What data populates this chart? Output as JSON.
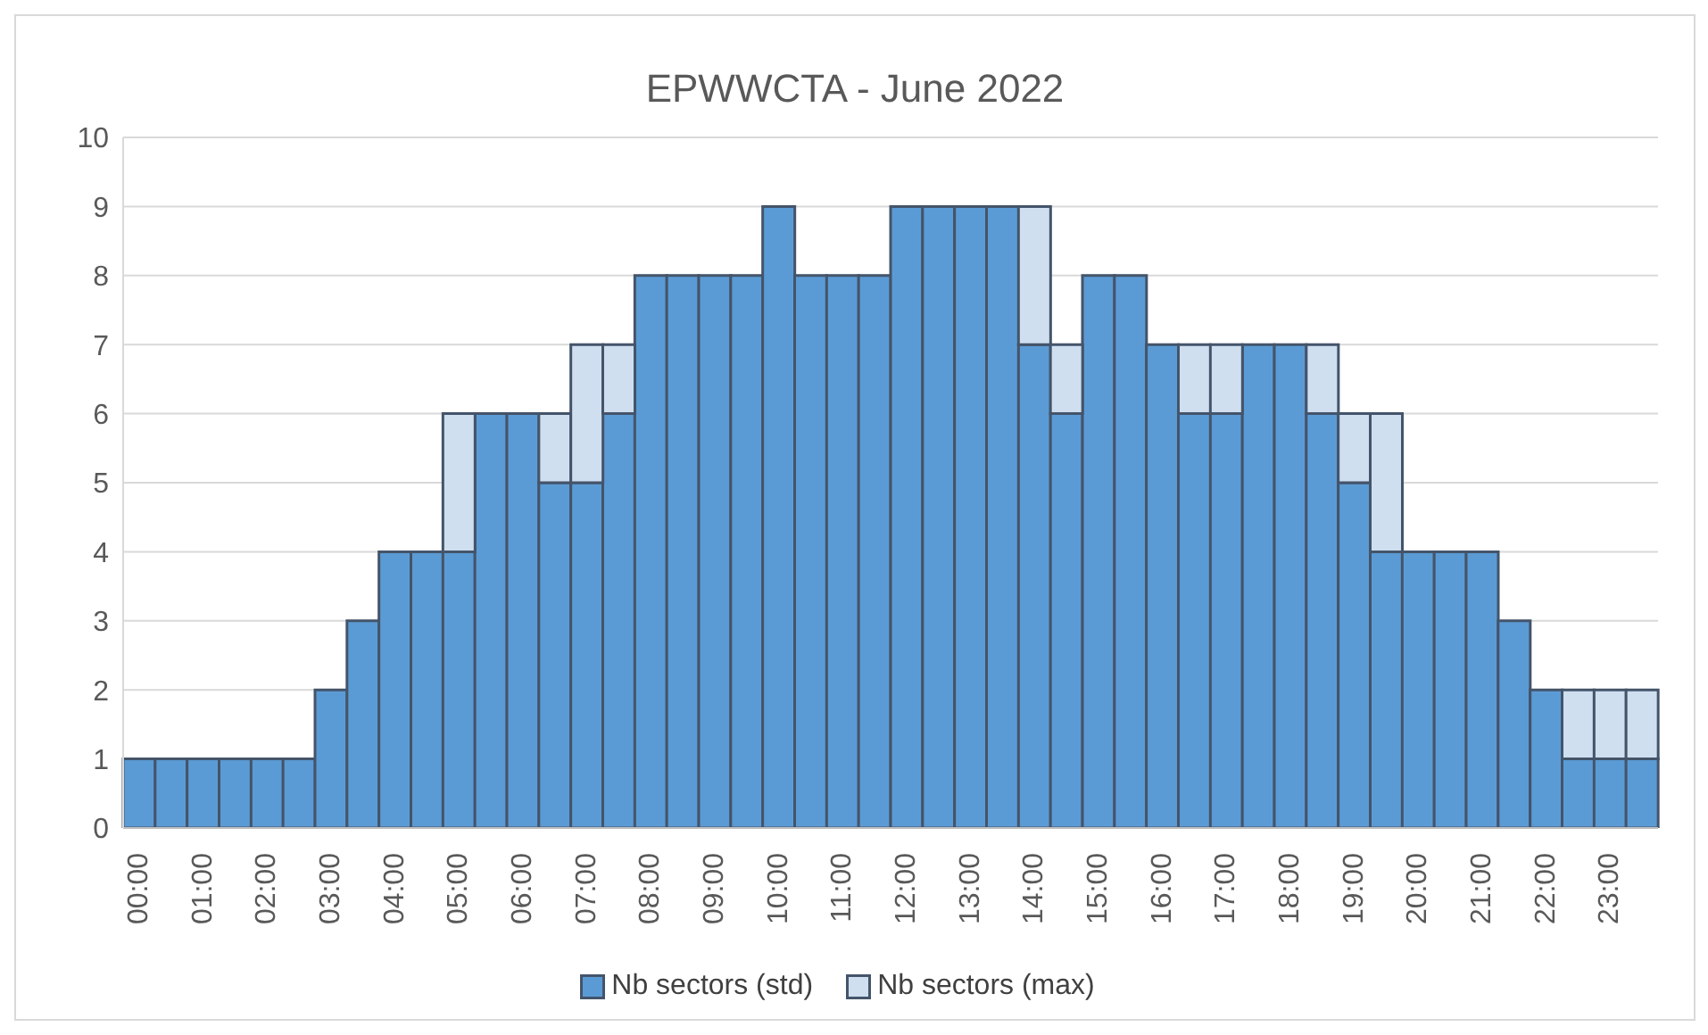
{
  "chart_data": {
    "type": "bar",
    "title": "EPWWCTA - June 2022",
    "stacked": true,
    "categories": [
      "00:00",
      null,
      "01:00",
      null,
      "02:00",
      null,
      "03:00",
      null,
      "04:00",
      null,
      "05:00",
      null,
      "06:00",
      null,
      "07:00",
      null,
      "08:00",
      null,
      "09:00",
      null,
      "10:00",
      null,
      "11:00",
      null,
      "12:00",
      null,
      "13:00",
      null,
      "14:00",
      null,
      "15:00",
      null,
      "16:00",
      null,
      "17:00",
      null,
      "18:00",
      null,
      "19:00",
      null,
      "20:00",
      null,
      "21:00",
      null,
      "22:00",
      null,
      "23:00",
      null
    ],
    "series": [
      {
        "name": "Nb sectors (std)",
        "color": "#5b9bd5",
        "values": [
          1,
          1,
          1,
          1,
          1,
          1,
          2,
          3,
          4,
          4,
          4,
          6,
          6,
          5,
          5,
          6,
          8,
          8,
          8,
          8,
          9,
          8,
          8,
          8,
          9,
          9,
          9,
          9,
          7,
          6,
          8,
          8,
          7,
          6,
          6,
          7,
          7,
          6,
          5,
          4,
          4,
          4,
          4,
          3,
          2,
          1,
          1,
          1
        ]
      },
      {
        "name": "Nb sectors (max)",
        "color": "#cfdff0",
        "values": [
          0,
          0,
          0,
          0,
          0,
          0,
          0,
          0,
          0,
          0,
          2,
          0,
          0,
          1,
          2,
          1,
          0,
          0,
          0,
          0,
          0,
          0,
          0,
          0,
          0,
          0,
          0,
          0,
          2,
          1,
          0,
          0,
          0,
          1,
          1,
          0,
          0,
          1,
          1,
          2,
          0,
          0,
          0,
          0,
          0,
          1,
          1,
          1
        ]
      }
    ],
    "ylim": [
      0,
      10
    ],
    "yticks": [
      0,
      1,
      2,
      3,
      4,
      5,
      6,
      7,
      8,
      9,
      10
    ],
    "grid": "y",
    "legend": "bottom"
  }
}
